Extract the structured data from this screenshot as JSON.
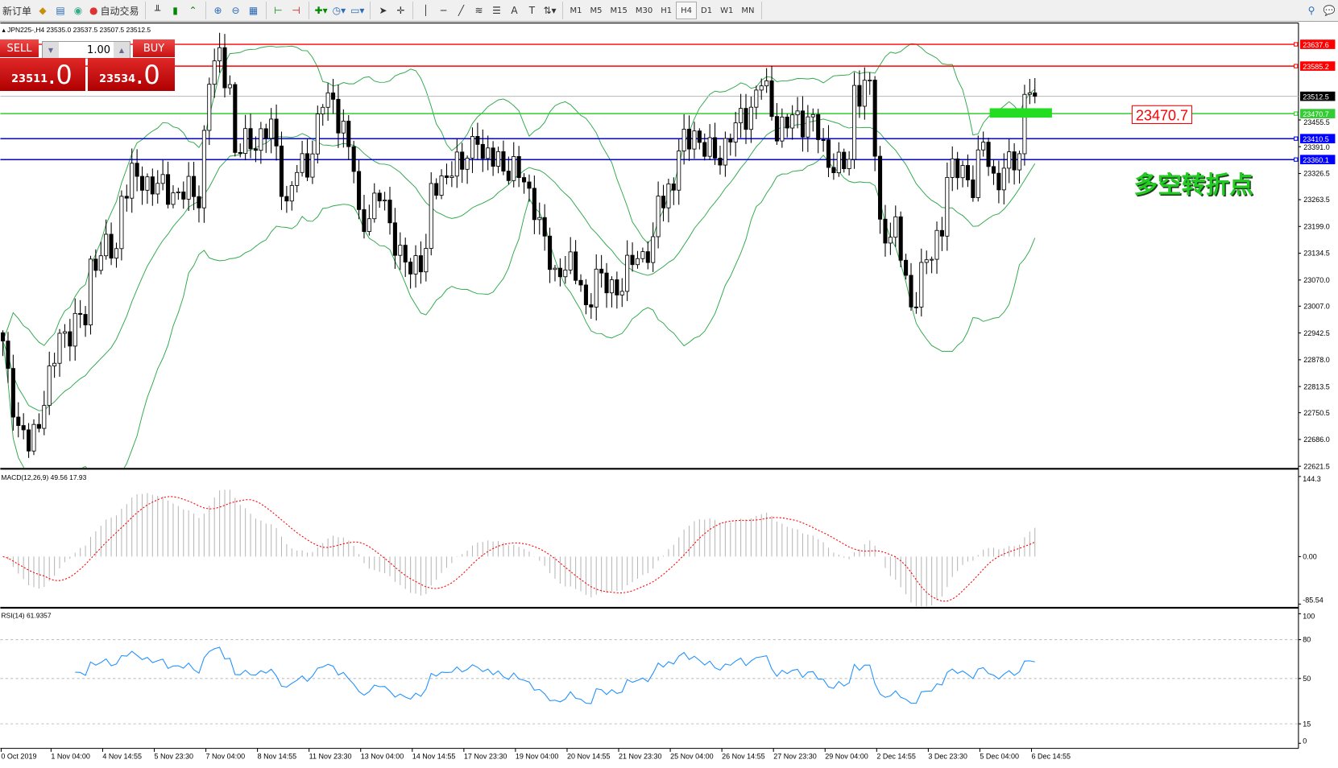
{
  "toolbar": {
    "new_order": "新订单",
    "auto_trading": "自动交易",
    "timeframes": [
      "M1",
      "M5",
      "M15",
      "M30",
      "H1",
      "H4",
      "D1",
      "W1",
      "MN"
    ],
    "active_timeframe": "H4",
    "icons": [
      "gold-bars-icon",
      "history-center-icon",
      "signal-icon",
      "bar-chart-icon",
      "candlestick-icon",
      "line-chart-icon",
      "zoom-in-icon",
      "zoom-out-icon",
      "tile-windows-icon",
      "chart-shift-icon",
      "autoscroll-icon",
      "indicators-icon",
      "periods-icon",
      "templates-icon",
      "cursor-icon",
      "crosshair-icon",
      "vertical-line-icon",
      "horizontal-line-icon",
      "trendline-icon",
      "fibonacci-icon",
      "fibo-fan-icon",
      "text-icon",
      "text-label-icon",
      "arrows-icon",
      "search-icon",
      "chat-icon"
    ]
  },
  "chart_header": {
    "symbol": "JPN225-,H4",
    "ohlc": "23535.0 23537.5 23507.5 23512.5"
  },
  "trade_panel": {
    "sell_label": "SELL",
    "buy_label": "BUY",
    "lot": "1.00",
    "sell_price_main": "23511",
    "sell_price_frac": ".0",
    "buy_price_main": "23534",
    "buy_price_frac": ".0"
  },
  "annotation": {
    "label": "多空转折点",
    "price_tag": "23470.7",
    "color": "#22cc22"
  },
  "chart_data": {
    "type": "candlestick",
    "symbol": "JPN225-",
    "timeframe": "H4",
    "last_close": 23512.5,
    "close_keypoints": [
      [
        0,
        22923
      ],
      [
        2,
        22779
      ],
      [
        3,
        22697
      ],
      [
        5,
        22677
      ],
      [
        7,
        22738
      ],
      [
        9,
        22821
      ],
      [
        11,
        22944
      ],
      [
        13,
        22944
      ],
      [
        16,
        22985
      ],
      [
        17,
        23108
      ],
      [
        20,
        23139
      ],
      [
        22,
        23149
      ],
      [
        23,
        23272
      ],
      [
        25,
        23313
      ],
      [
        27,
        23313
      ],
      [
        30,
        23293
      ],
      [
        32,
        23282
      ],
      [
        35,
        23282
      ],
      [
        38,
        23272
      ],
      [
        40,
        23560
      ],
      [
        42,
        23601
      ],
      [
        44,
        23539
      ],
      [
        45,
        23375
      ],
      [
        47,
        23395
      ],
      [
        50,
        23416
      ],
      [
        52,
        23436
      ],
      [
        54,
        23313
      ],
      [
        55,
        23252
      ],
      [
        57,
        23334
      ],
      [
        59,
        23344
      ],
      [
        62,
        23498
      ],
      [
        64,
        23498
      ],
      [
        66,
        23436
      ],
      [
        68,
        23334
      ],
      [
        69,
        23211
      ],
      [
        71,
        23231
      ],
      [
        73,
        23272
      ],
      [
        75,
        23211
      ],
      [
        77,
        23128
      ],
      [
        79,
        23087
      ],
      [
        82,
        23149
      ],
      [
        83,
        23272
      ],
      [
        85,
        23303
      ],
      [
        87,
        23354
      ],
      [
        89,
        23334
      ],
      [
        92,
        23436
      ],
      [
        93,
        23354
      ],
      [
        96,
        23365
      ],
      [
        98,
        23334
      ],
      [
        101,
        23313
      ],
      [
        103,
        23252
      ],
      [
        105,
        23149
      ],
      [
        107,
        23087
      ],
      [
        109,
        23108
      ],
      [
        112,
        23067
      ],
      [
        113,
        23005
      ],
      [
        115,
        23067
      ],
      [
        117,
        23067
      ],
      [
        120,
        23046
      ],
      [
        122,
        23128
      ],
      [
        126,
        23139
      ],
      [
        127,
        23262
      ],
      [
        130,
        23303
      ],
      [
        131,
        23375
      ],
      [
        134,
        23436
      ],
      [
        135,
        23395
      ],
      [
        138,
        23365
      ],
      [
        140,
        23395
      ],
      [
        142,
        23436
      ],
      [
        145,
        23488
      ],
      [
        147,
        23549
      ],
      [
        149,
        23477
      ],
      [
        150,
        23436
      ],
      [
        154,
        23457
      ],
      [
        157,
        23457
      ],
      [
        159,
        23375
      ],
      [
        161,
        23354
      ],
      [
        164,
        23344
      ],
      [
        165,
        23529
      ],
      [
        168,
        23539
      ],
      [
        169,
        23375
      ],
      [
        170,
        23190
      ],
      [
        173,
        23190
      ],
      [
        174,
        23128
      ],
      [
        176,
        23005
      ],
      [
        178,
        23087
      ],
      [
        180,
        23128
      ],
      [
        182,
        23211
      ],
      [
        183,
        23323
      ],
      [
        186,
        23334
      ],
      [
        188,
        23303
      ],
      [
        190,
        23395
      ],
      [
        192,
        23313
      ],
      [
        193,
        23323
      ],
      [
        195,
        23344
      ],
      [
        197,
        23365
      ],
      [
        198,
        23529
      ],
      [
        200,
        23512.5
      ]
    ],
    "price_axis": {
      "ylim": [
        22621.5,
        23637.6
      ],
      "ticks": [
        "23455.5",
        "23391.0",
        "23326.5",
        "23263.5",
        "23199.0",
        "23134.5",
        "23070.0",
        "23007.0",
        "22942.5",
        "22878.0",
        "22813.5",
        "22750.5",
        "22686.0",
        "22621.5"
      ]
    },
    "horizontal_lines": [
      {
        "price": "23637.6",
        "color": "#ff0000"
      },
      {
        "price": "23585.2",
        "color": "#ff0000"
      },
      {
        "price": "23512.5",
        "color": "#000000",
        "line": "#c0c0c0"
      },
      {
        "price": "23470.7",
        "color": "#33cc33"
      },
      {
        "price": "23410.5",
        "color": "#0000ff"
      },
      {
        "price": "23360.1",
        "color": "#0000ff"
      }
    ],
    "bollinger_color": "#2ea84a",
    "time_labels": [
      "0 Oct 2019",
      "1 Nov 04:00",
      "4 Nov 14:55",
      "5 Nov 23:30",
      "7 Nov 04:00",
      "8 Nov 14:55",
      "11 Nov 23:30",
      "13 Nov 04:00",
      "14 Nov 14:55",
      "17 Nov 23:30",
      "19 Nov 04:00",
      "20 Nov 14:55",
      "21 Nov 23:30",
      "25 Nov 04:00",
      "26 Nov 14:55",
      "27 Nov 23:30",
      "29 Nov 04:00",
      "2 Dec 14:55",
      "3 Dec 23:30",
      "5 Dec 04:00",
      "6 Dec 14:55"
    ],
    "macd": {
      "label": "MACD(12,26,9) 49.56 17.93",
      "ticks": [
        "144.3",
        "0.00",
        "-85.54"
      ],
      "ylim": [
        -85.54,
        144.3
      ]
    },
    "rsi": {
      "label": "RSI(14) 61.9357",
      "ticks": [
        "100",
        "80",
        "50",
        "15",
        "0"
      ],
      "levels": [
        80,
        50,
        15
      ]
    }
  }
}
